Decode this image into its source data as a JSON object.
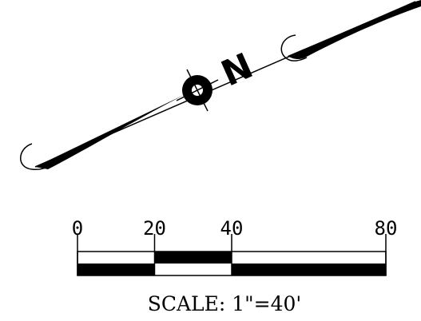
{
  "north_arrow": {
    "letter": "N",
    "icon": "north-arrow-icon"
  },
  "scale_bar": {
    "ticks": [
      {
        "value": 0,
        "label": "0"
      },
      {
        "value": 20,
        "label": "20"
      },
      {
        "value": 40,
        "label": "40"
      },
      {
        "value": 80,
        "label": "80"
      }
    ],
    "max_value": 80,
    "caption": "SCALE:  1\"=40'"
  },
  "colors": {
    "ink": "#000000",
    "paper": "#ffffff"
  }
}
